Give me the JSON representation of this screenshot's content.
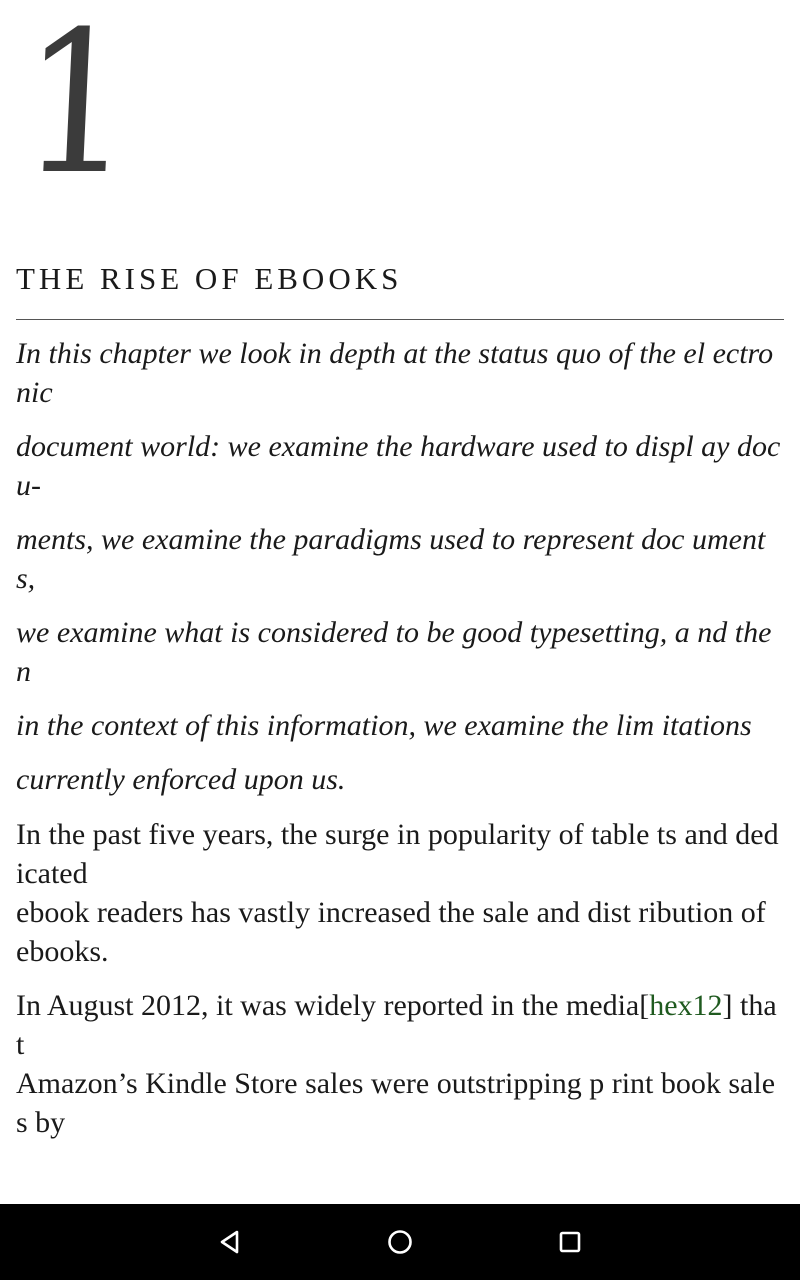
{
  "chapter": {
    "number": "1",
    "title": "THE RISE OF EBOOKS"
  },
  "abstract_lines": [
    "In this chapter we look in depth at the status quo of the el ectronic",
    "document world: we examine the hardware used to displ ay docu-",
    "ments, we examine the paradigms used to represent doc uments,",
    "we examine what is considered to be good typesetting, a nd then",
    "in the context of this information, we examine the lim itations",
    "currently enforced upon us."
  ],
  "body": {
    "p1": "In the past five years, the surge in popularity of table ts and dedicated",
    "p2": "ebook readers has vastly increased the sale and dist ribution of ebooks.",
    "p3_before": "In  August 2012, it was  widely  reported  in  the media[",
    "p3_link": "hex12",
    "p3_after": "] that",
    "p4": "Amazon’s Kindle Store sales were outstripping p rint book sales by"
  },
  "navbar": {
    "background": "#000000",
    "icon_color": "#ffffff",
    "buttons": [
      {
        "name": "back",
        "icon": "triangle-back-icon"
      },
      {
        "name": "home",
        "icon": "circle-home-icon"
      },
      {
        "name": "recent",
        "icon": "square-recent-icon"
      }
    ]
  }
}
